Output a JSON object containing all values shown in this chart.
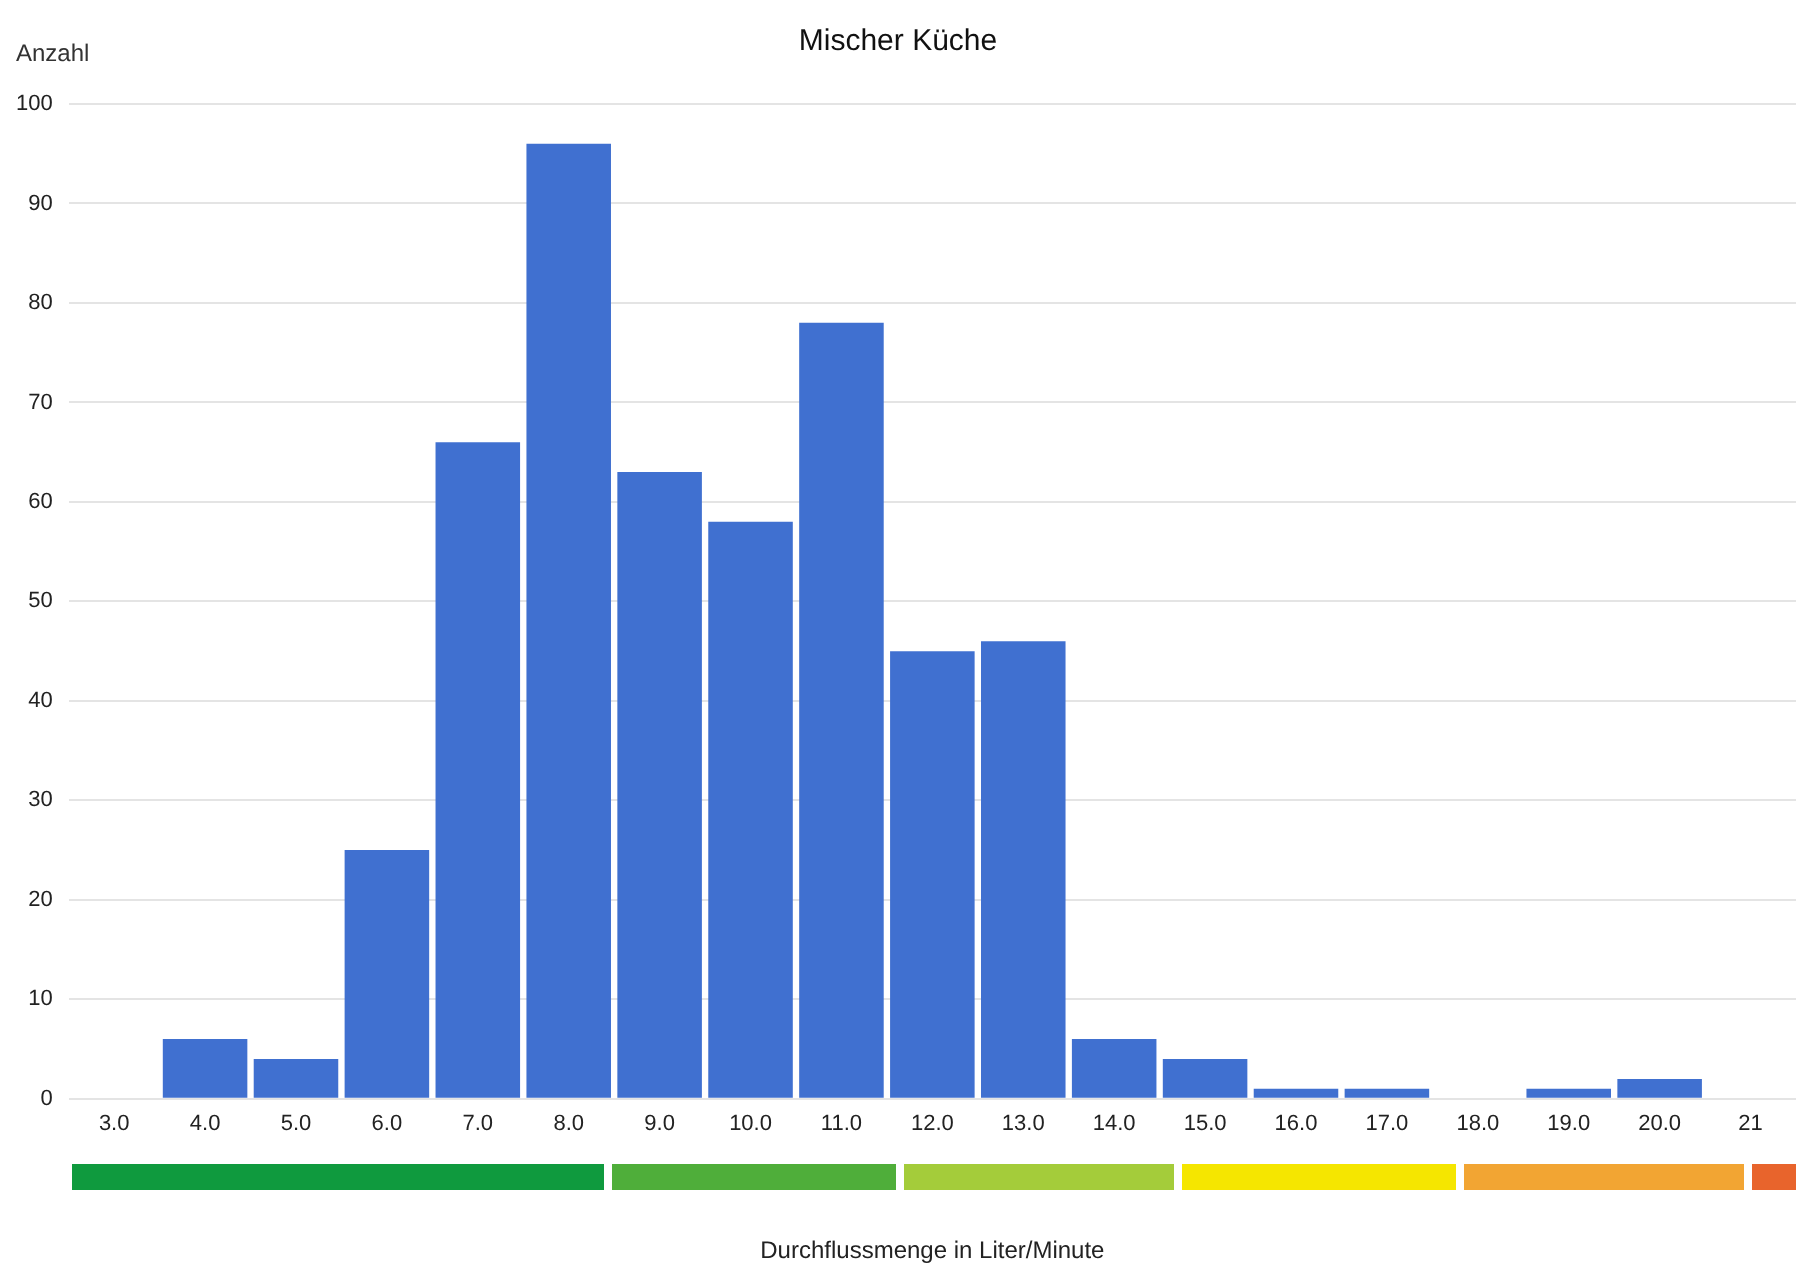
{
  "chart_data": {
    "type": "bar",
    "title": "Mischer Küche",
    "ylabel": "Anzahl",
    "xlabel": "Durchflussmenge in Liter/Minute",
    "categories": [
      "3.0",
      "4.0",
      "5.0",
      "6.0",
      "7.0",
      "8.0",
      "9.0",
      "10.0",
      "11.0",
      "12.0",
      "13.0",
      "14.0",
      "15.0",
      "16.0",
      "17.0",
      "18.0",
      "19.0",
      "20.0",
      "21"
    ],
    "values": [
      0,
      6,
      4,
      25,
      66,
      96,
      63,
      58,
      78,
      45,
      46,
      6,
      4,
      1,
      1,
      0,
      1,
      2,
      null
    ],
    "color": "#4070d0",
    "ylim": [
      0,
      100
    ],
    "yticks": [
      0,
      10,
      20,
      30,
      40,
      50,
      60,
      70,
      80,
      90,
      100
    ],
    "grid": "y",
    "legend": false
  }
}
